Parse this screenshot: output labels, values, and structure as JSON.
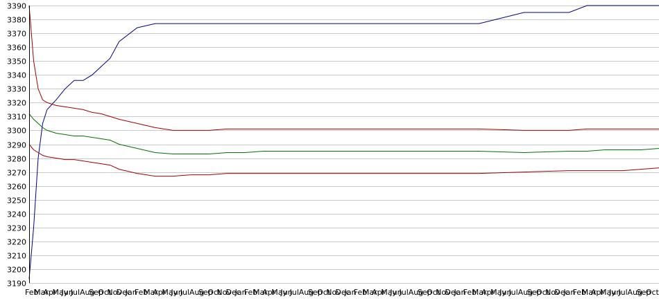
{
  "chart_data": {
    "type": "line",
    "title": "",
    "xlabel": "",
    "ylabel": "",
    "ylim": [
      3190,
      3390
    ],
    "y_ticks": [
      3190,
      3200,
      3210,
      3220,
      3230,
      3240,
      3250,
      3260,
      3270,
      3280,
      3290,
      3300,
      3310,
      3320,
      3330,
      3340,
      3350,
      3360,
      3370,
      3380,
      3390
    ],
    "x_tick_labels": [
      "Feb",
      "Mar",
      "Apr",
      "May",
      "Jun",
      "Jul",
      "Aug",
      "Sep",
      "Oct",
      "Nov",
      "Dec",
      "Jan",
      "Feb",
      "Mar",
      "Apr",
      "May",
      "Jun",
      "Jul",
      "Aug",
      "Sep",
      "Oct",
      "Nov",
      "Dec",
      "Jan",
      "Feb",
      "Mar",
      "Apr",
      "May",
      "Jun",
      "Jul",
      "Aug",
      "Sep",
      "Oct",
      "Nov",
      "Dec",
      "Jan",
      "Feb",
      "Mar",
      "Apr",
      "May",
      "Jun",
      "Jul",
      "Aug",
      "Sep",
      "Oct",
      "Nov",
      "Dec",
      "Jan",
      "Feb",
      "Mar",
      "Apr",
      "May",
      "Jun",
      "Jul",
      "Aug",
      "Sep",
      "Oct",
      "Nov",
      "Dec",
      "Jan",
      "Feb",
      "Mar",
      "Apr",
      "May",
      "Jun",
      "Jul",
      "Aug",
      "Sep",
      "Oct"
    ],
    "grid": true,
    "legend": "none",
    "x": [
      0,
      0.5,
      1,
      1.5,
      2,
      3,
      4,
      5,
      6,
      7,
      8,
      9,
      10,
      12,
      14,
      16,
      18,
      20,
      22,
      24,
      26,
      28,
      30,
      35,
      40,
      45,
      50,
      55,
      60,
      62,
      64,
      66,
      68,
      70
    ],
    "series": [
      {
        "color": "#000080",
        "values": [
          3193,
          3230,
          3280,
          3305,
          3315,
          3322,
          3330,
          3336,
          3336,
          3340,
          3346,
          3352,
          3364,
          3374,
          3377,
          3377,
          3377,
          3377,
          3377,
          3377,
          3377,
          3377,
          3377,
          3377,
          3377,
          3377,
          3377,
          3385,
          3385,
          3390,
          3390,
          3390,
          3390,
          3390
        ]
      },
      {
        "color": "#a00000",
        "values": [
          3390,
          3350,
          3330,
          3322,
          3320,
          3318,
          3317,
          3316,
          3315,
          3313,
          3312,
          3310,
          3308,
          3305,
          3302,
          3300,
          3300,
          3300,
          3301,
          3301,
          3301,
          3301,
          3301,
          3301,
          3301,
          3301,
          3301,
          3300,
          3300,
          3301,
          3301,
          3301,
          3301,
          3301
        ]
      },
      {
        "color": "#007000",
        "values": [
          3312,
          3308,
          3305,
          3302,
          3300,
          3298,
          3297,
          3296,
          3296,
          3295,
          3294,
          3293,
          3290,
          3287,
          3284,
          3283,
          3283,
          3283,
          3284,
          3284,
          3285,
          3285,
          3285,
          3285,
          3285,
          3285,
          3285,
          3284,
          3285,
          3285,
          3286,
          3286,
          3286,
          3287
        ]
      },
      {
        "color": "#a00000",
        "values": [
          3290,
          3286,
          3284,
          3282,
          3281,
          3280,
          3279,
          3279,
          3278,
          3277,
          3276,
          3275,
          3272,
          3269,
          3267,
          3267,
          3268,
          3268,
          3269,
          3269,
          3269,
          3269,
          3269,
          3269,
          3269,
          3269,
          3269,
          3270,
          3271,
          3271,
          3271,
          3271,
          3272,
          3273
        ]
      }
    ]
  }
}
